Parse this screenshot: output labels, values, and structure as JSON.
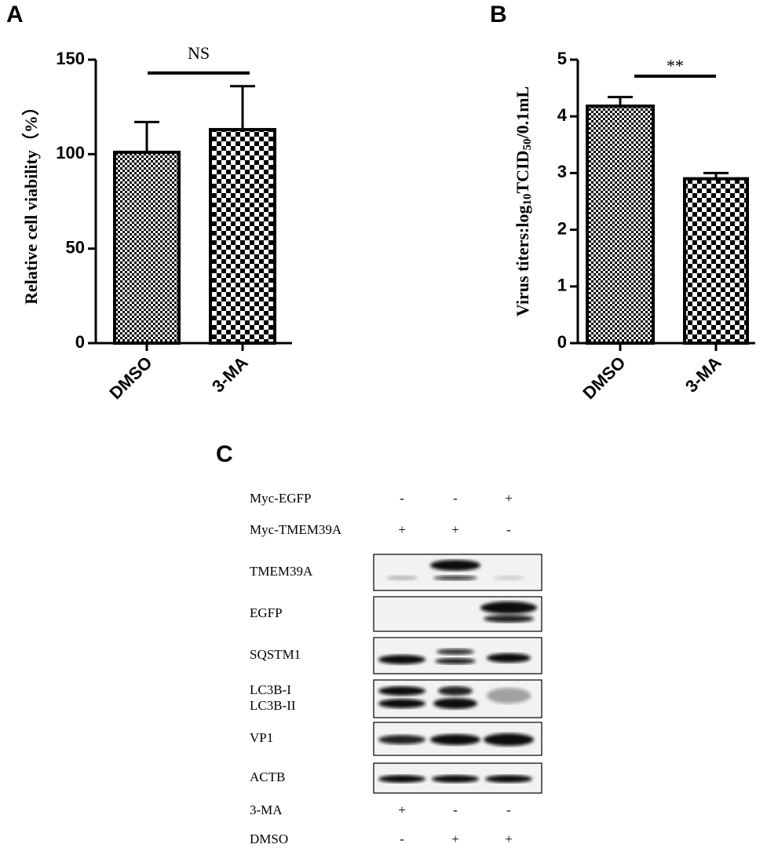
{
  "panel_labels": [
    "A",
    "B",
    "C"
  ],
  "chart_data": [
    {
      "type": "bar",
      "ylabel": [
        "Relative cell viability（%）"
      ],
      "categories": [
        "DMSO",
        "3-MA"
      ],
      "values": [
        101,
        113
      ],
      "errors": [
        16,
        23
      ],
      "ylim": [
        0,
        150
      ],
      "yticks": [
        0,
        50,
        100,
        150
      ],
      "annotation": "NS",
      "color": "#000000"
    },
    {
      "type": "bar",
      "ylabel": [
        "Virus titers:log",
        "10",
        "TCID",
        "50",
        "/0.1mL"
      ],
      "categories": [
        "DMSO",
        "3-MA"
      ],
      "values": [
        4.18,
        2.9
      ],
      "errors": [
        0.16,
        0.1
      ],
      "ylim": [
        0,
        5
      ],
      "yticks": [
        0,
        1,
        2,
        3,
        4,
        5
      ],
      "annotation": "**",
      "color": "#000000"
    }
  ],
  "blot": {
    "top_rows": [
      {
        "label": "Myc-EGFP",
        "signs": [
          "-",
          "-",
          "+"
        ]
      },
      {
        "label": "Myc-TMEM39A",
        "signs": [
          "+",
          "+",
          "-"
        ]
      }
    ],
    "bands": [
      {
        "labels": [
          "TMEM39A"
        ]
      },
      {
        "labels": [
          "EGFP"
        ]
      },
      {
        "labels": [
          "SQSTM1"
        ]
      },
      {
        "labels": [
          "LC3B-I",
          "LC3B-II"
        ]
      },
      {
        "labels": [
          "VP1"
        ]
      },
      {
        "labels": [
          "ACTB"
        ]
      }
    ],
    "bottom_rows": [
      {
        "label": "3-MA",
        "signs": [
          "+",
          "-",
          "-"
        ]
      },
      {
        "label": "DMSO",
        "signs": [
          "-",
          "+",
          "+"
        ]
      }
    ]
  }
}
